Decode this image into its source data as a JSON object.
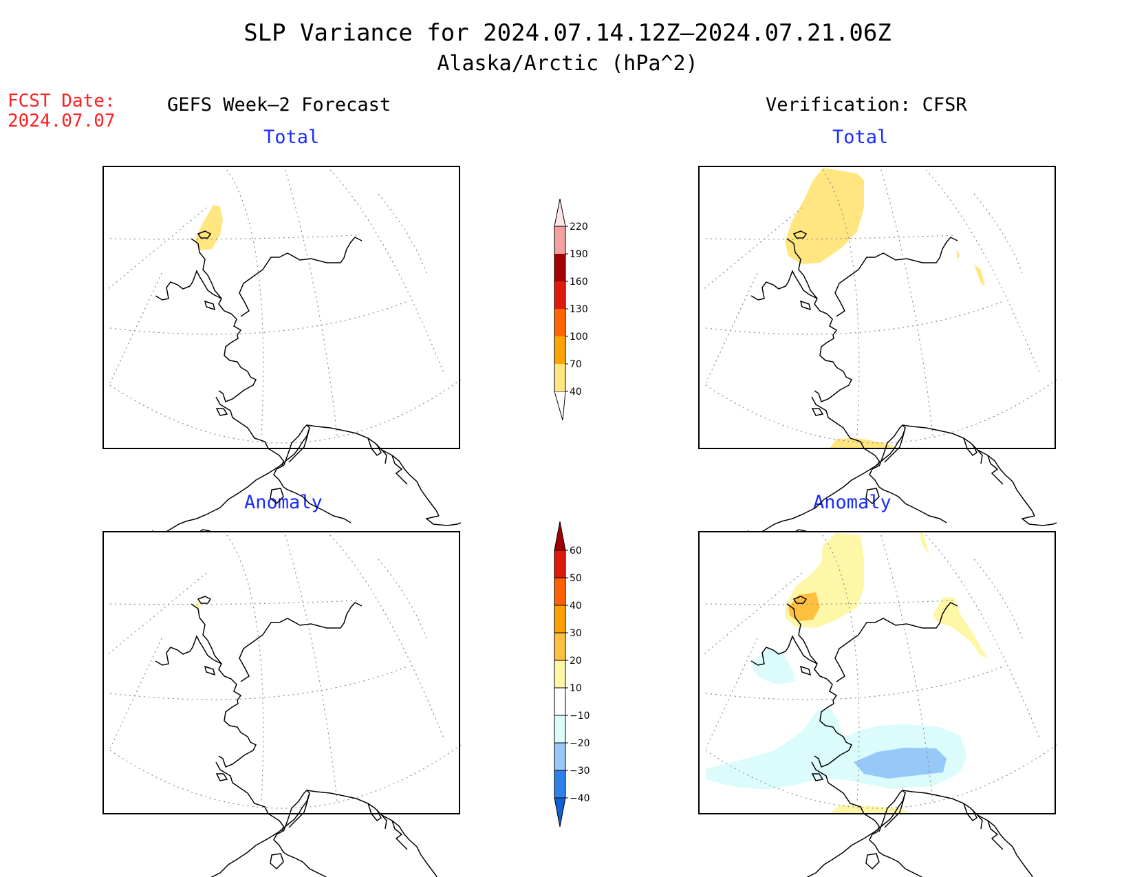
{
  "title": {
    "line1": "SLP Variance for 2024.07.14.12Z–2024.07.21.06Z",
    "line2": "Alaska/Arctic (hPa^2)"
  },
  "fcst": {
    "label": "FCST Date:",
    "date": "2024.07.07"
  },
  "columns": {
    "left": "GEFS Week–2 Forecast",
    "right": "Verification: CFSR"
  },
  "panels": {
    "top_left": "Total",
    "top_right": "Total",
    "bottom_left": "Anomaly",
    "bottom_right": "Anomaly"
  },
  "colorbar_total": {
    "labels": [
      "40",
      "70",
      "100",
      "130",
      "160",
      "190",
      "220"
    ],
    "colors": [
      "#ffe680",
      "#ffa400",
      "#ff6600",
      "#e01b0b",
      "#a50000",
      "#f2a0a0",
      "#fde5e5"
    ]
  },
  "colorbar_anomaly": {
    "labels": [
      "−40",
      "−30",
      "−20",
      "−10",
      "10",
      "20",
      "30",
      "40",
      "50",
      "60"
    ],
    "colors": [
      "#1060d8",
      "#2c80e8",
      "#96c8f8",
      "#dcfcfc",
      "#ffffff",
      "#fff7a8",
      "#ffc040",
      "#ff9f00",
      "#ff6000",
      "#e01808",
      "#a00000"
    ]
  },
  "colors": {
    "blue_title": "#1a2bff",
    "red_text": "#ff2020"
  }
}
